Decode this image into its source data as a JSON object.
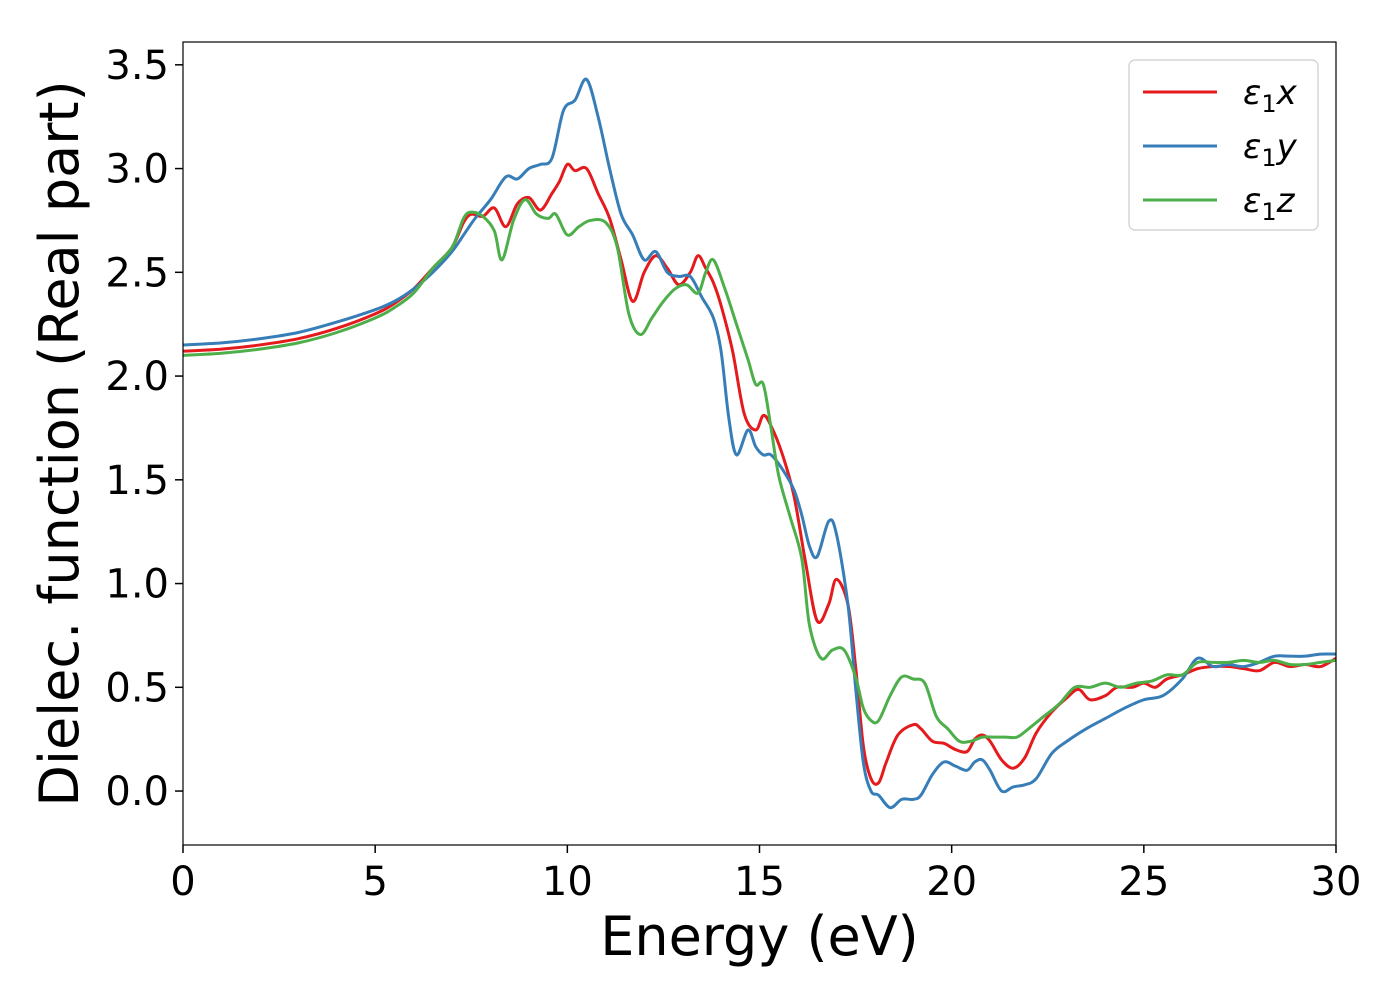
{
  "chart_data": {
    "type": "line",
    "xlabel": "Energy (eV)",
    "ylabel": "Dielec. function (Real part)",
    "xlim": [
      0,
      30
    ],
    "ylim": [
      -0.26,
      3.61
    ],
    "x_ticks": [
      0,
      5,
      10,
      15,
      20,
      25,
      30
    ],
    "y_ticks": [
      0.0,
      0.5,
      1.0,
      1.5,
      2.0,
      2.5,
      3.0,
      3.5
    ],
    "x_tick_labels": [
      "0",
      "5",
      "10",
      "15",
      "20",
      "25",
      "30"
    ],
    "y_tick_labels": [
      "0.0",
      "0.5",
      "1.0",
      "1.5",
      "2.0",
      "2.5",
      "3.0",
      "3.5"
    ],
    "grid": false,
    "legend_position": "top-right",
    "series": [
      {
        "name_symbol": "ε",
        "name_sub": "1",
        "name_var": "x",
        "color": "#e41a1c",
        "points": [
          [
            0,
            2.12
          ],
          [
            1,
            2.13
          ],
          [
            2,
            2.15
          ],
          [
            3,
            2.18
          ],
          [
            4,
            2.23
          ],
          [
            5,
            2.3
          ],
          [
            5.5,
            2.35
          ],
          [
            6,
            2.42
          ],
          [
            6.5,
            2.52
          ],
          [
            7,
            2.62
          ],
          [
            7.3,
            2.74
          ],
          [
            7.5,
            2.78
          ],
          [
            7.8,
            2.77
          ],
          [
            8.1,
            2.81
          ],
          [
            8.4,
            2.72
          ],
          [
            8.7,
            2.83
          ],
          [
            9.0,
            2.86
          ],
          [
            9.3,
            2.8
          ],
          [
            9.6,
            2.88
          ],
          [
            9.8,
            2.94
          ],
          [
            10.0,
            3.02
          ],
          [
            10.2,
            2.99
          ],
          [
            10.5,
            3.0
          ],
          [
            10.8,
            2.88
          ],
          [
            11.1,
            2.76
          ],
          [
            11.4,
            2.56
          ],
          [
            11.7,
            2.36
          ],
          [
            12.0,
            2.5
          ],
          [
            12.3,
            2.58
          ],
          [
            12.6,
            2.52
          ],
          [
            12.9,
            2.44
          ],
          [
            13.2,
            2.5
          ],
          [
            13.4,
            2.58
          ],
          [
            13.6,
            2.52
          ],
          [
            13.8,
            2.45
          ],
          [
            14.0,
            2.34
          ],
          [
            14.3,
            2.12
          ],
          [
            14.6,
            1.82
          ],
          [
            14.9,
            1.74
          ],
          [
            15.1,
            1.81
          ],
          [
            15.3,
            1.76
          ],
          [
            15.6,
            1.62
          ],
          [
            15.9,
            1.42
          ],
          [
            16.2,
            1.1
          ],
          [
            16.5,
            0.82
          ],
          [
            16.8,
            0.9
          ],
          [
            17.0,
            1.02
          ],
          [
            17.3,
            0.9
          ],
          [
            17.5,
            0.6
          ],
          [
            17.7,
            0.22
          ],
          [
            17.9,
            0.06
          ],
          [
            18.1,
            0.04
          ],
          [
            18.3,
            0.14
          ],
          [
            18.6,
            0.27
          ],
          [
            19.0,
            0.32
          ],
          [
            19.2,
            0.3
          ],
          [
            19.5,
            0.24
          ],
          [
            19.8,
            0.23
          ],
          [
            20.1,
            0.2
          ],
          [
            20.4,
            0.19
          ],
          [
            20.6,
            0.25
          ],
          [
            20.8,
            0.27
          ],
          [
            21.0,
            0.24
          ],
          [
            21.3,
            0.15
          ],
          [
            21.6,
            0.11
          ],
          [
            21.9,
            0.16
          ],
          [
            22.2,
            0.28
          ],
          [
            22.6,
            0.38
          ],
          [
            23.0,
            0.45
          ],
          [
            23.3,
            0.49
          ],
          [
            23.6,
            0.44
          ],
          [
            24.0,
            0.46
          ],
          [
            24.3,
            0.5
          ],
          [
            24.7,
            0.5
          ],
          [
            25.0,
            0.52
          ],
          [
            25.3,
            0.5
          ],
          [
            25.6,
            0.54
          ],
          [
            26.0,
            0.56
          ],
          [
            26.4,
            0.59
          ],
          [
            26.8,
            0.6
          ],
          [
            27.2,
            0.6
          ],
          [
            27.6,
            0.59
          ],
          [
            28.0,
            0.58
          ],
          [
            28.4,
            0.62
          ],
          [
            28.8,
            0.6
          ],
          [
            29.2,
            0.61
          ],
          [
            29.6,
            0.6
          ],
          [
            30.0,
            0.64
          ]
        ]
      },
      {
        "name_symbol": "ε",
        "name_sub": "1",
        "name_var": "y",
        "color": "#377eb8",
        "points": [
          [
            0,
            2.15
          ],
          [
            1,
            2.16
          ],
          [
            2,
            2.18
          ],
          [
            3,
            2.21
          ],
          [
            4,
            2.26
          ],
          [
            5,
            2.32
          ],
          [
            5.5,
            2.36
          ],
          [
            6,
            2.42
          ],
          [
            6.5,
            2.5
          ],
          [
            7,
            2.6
          ],
          [
            7.3,
            2.68
          ],
          [
            7.6,
            2.76
          ],
          [
            8.0,
            2.85
          ],
          [
            8.4,
            2.96
          ],
          [
            8.7,
            2.95
          ],
          [
            9.0,
            3.0
          ],
          [
            9.3,
            3.02
          ],
          [
            9.6,
            3.05
          ],
          [
            9.9,
            3.28
          ],
          [
            10.2,
            3.33
          ],
          [
            10.5,
            3.43
          ],
          [
            10.8,
            3.25
          ],
          [
            11.1,
            3.0
          ],
          [
            11.4,
            2.78
          ],
          [
            11.7,
            2.68
          ],
          [
            12.0,
            2.56
          ],
          [
            12.3,
            2.6
          ],
          [
            12.6,
            2.5
          ],
          [
            12.9,
            2.48
          ],
          [
            13.2,
            2.48
          ],
          [
            13.5,
            2.38
          ],
          [
            13.8,
            2.28
          ],
          [
            14.0,
            2.12
          ],
          [
            14.2,
            1.8
          ],
          [
            14.4,
            1.62
          ],
          [
            14.7,
            1.74
          ],
          [
            14.9,
            1.66
          ],
          [
            15.1,
            1.62
          ],
          [
            15.3,
            1.62
          ],
          [
            15.6,
            1.55
          ],
          [
            15.9,
            1.45
          ],
          [
            16.1,
            1.33
          ],
          [
            16.3,
            1.18
          ],
          [
            16.5,
            1.13
          ],
          [
            16.8,
            1.3
          ],
          [
            17.0,
            1.24
          ],
          [
            17.3,
            0.9
          ],
          [
            17.5,
            0.5
          ],
          [
            17.7,
            0.14
          ],
          [
            17.9,
            0.0
          ],
          [
            18.1,
            -0.02
          ],
          [
            18.4,
            -0.08
          ],
          [
            18.7,
            -0.04
          ],
          [
            19.0,
            -0.04
          ],
          [
            19.2,
            -0.02
          ],
          [
            19.5,
            0.08
          ],
          [
            19.8,
            0.14
          ],
          [
            20.1,
            0.12
          ],
          [
            20.4,
            0.1
          ],
          [
            20.6,
            0.14
          ],
          [
            20.8,
            0.15
          ],
          [
            21.0,
            0.1
          ],
          [
            21.3,
            0.0
          ],
          [
            21.6,
            0.02
          ],
          [
            21.9,
            0.03
          ],
          [
            22.2,
            0.06
          ],
          [
            22.6,
            0.18
          ],
          [
            23.0,
            0.24
          ],
          [
            23.5,
            0.3
          ],
          [
            24.0,
            0.35
          ],
          [
            24.5,
            0.4
          ],
          [
            25.0,
            0.44
          ],
          [
            25.5,
            0.46
          ],
          [
            26.0,
            0.54
          ],
          [
            26.4,
            0.64
          ],
          [
            26.8,
            0.6
          ],
          [
            27.2,
            0.61
          ],
          [
            27.6,
            0.6
          ],
          [
            28.0,
            0.62
          ],
          [
            28.4,
            0.65
          ],
          [
            28.8,
            0.65
          ],
          [
            29.2,
            0.65
          ],
          [
            29.6,
            0.66
          ],
          [
            30.0,
            0.66
          ]
        ]
      },
      {
        "name_symbol": "ε",
        "name_sub": "1",
        "name_var": "z",
        "color": "#4daf4a",
        "points": [
          [
            0,
            2.1
          ],
          [
            1,
            2.11
          ],
          [
            2,
            2.13
          ],
          [
            3,
            2.16
          ],
          [
            4,
            2.21
          ],
          [
            5,
            2.28
          ],
          [
            5.5,
            2.33
          ],
          [
            6,
            2.4
          ],
          [
            6.5,
            2.52
          ],
          [
            7,
            2.62
          ],
          [
            7.3,
            2.76
          ],
          [
            7.5,
            2.79
          ],
          [
            7.8,
            2.77
          ],
          [
            8.1,
            2.7
          ],
          [
            8.3,
            2.56
          ],
          [
            8.6,
            2.75
          ],
          [
            8.9,
            2.85
          ],
          [
            9.2,
            2.78
          ],
          [
            9.5,
            2.76
          ],
          [
            9.7,
            2.78
          ],
          [
            10.0,
            2.68
          ],
          [
            10.3,
            2.72
          ],
          [
            10.6,
            2.75
          ],
          [
            11.0,
            2.74
          ],
          [
            11.3,
            2.62
          ],
          [
            11.6,
            2.3
          ],
          [
            11.9,
            2.2
          ],
          [
            12.2,
            2.28
          ],
          [
            12.5,
            2.36
          ],
          [
            12.8,
            2.42
          ],
          [
            13.1,
            2.44
          ],
          [
            13.4,
            2.4
          ],
          [
            13.6,
            2.5
          ],
          [
            13.8,
            2.56
          ],
          [
            14.1,
            2.42
          ],
          [
            14.4,
            2.25
          ],
          [
            14.7,
            2.08
          ],
          [
            14.9,
            1.96
          ],
          [
            15.1,
            1.96
          ],
          [
            15.3,
            1.75
          ],
          [
            15.5,
            1.52
          ],
          [
            15.8,
            1.32
          ],
          [
            16.1,
            1.12
          ],
          [
            16.3,
            0.8
          ],
          [
            16.6,
            0.64
          ],
          [
            16.9,
            0.68
          ],
          [
            17.2,
            0.68
          ],
          [
            17.5,
            0.55
          ],
          [
            17.7,
            0.4
          ],
          [
            17.9,
            0.34
          ],
          [
            18.1,
            0.34
          ],
          [
            18.4,
            0.46
          ],
          [
            18.7,
            0.55
          ],
          [
            19.0,
            0.54
          ],
          [
            19.3,
            0.52
          ],
          [
            19.6,
            0.36
          ],
          [
            19.9,
            0.3
          ],
          [
            20.2,
            0.24
          ],
          [
            20.5,
            0.24
          ],
          [
            20.8,
            0.26
          ],
          [
            21.1,
            0.26
          ],
          [
            21.4,
            0.26
          ],
          [
            21.7,
            0.26
          ],
          [
            22.0,
            0.3
          ],
          [
            22.4,
            0.36
          ],
          [
            22.8,
            0.42
          ],
          [
            23.2,
            0.5
          ],
          [
            23.6,
            0.5
          ],
          [
            24.0,
            0.52
          ],
          [
            24.4,
            0.5
          ],
          [
            24.8,
            0.52
          ],
          [
            25.2,
            0.53
          ],
          [
            25.6,
            0.56
          ],
          [
            26.0,
            0.56
          ],
          [
            26.4,
            0.62
          ],
          [
            26.8,
            0.62
          ],
          [
            27.2,
            0.62
          ],
          [
            27.6,
            0.63
          ],
          [
            28.0,
            0.62
          ],
          [
            28.4,
            0.63
          ],
          [
            28.8,
            0.61
          ],
          [
            29.2,
            0.61
          ],
          [
            29.6,
            0.62
          ],
          [
            30.0,
            0.63
          ]
        ]
      }
    ]
  }
}
